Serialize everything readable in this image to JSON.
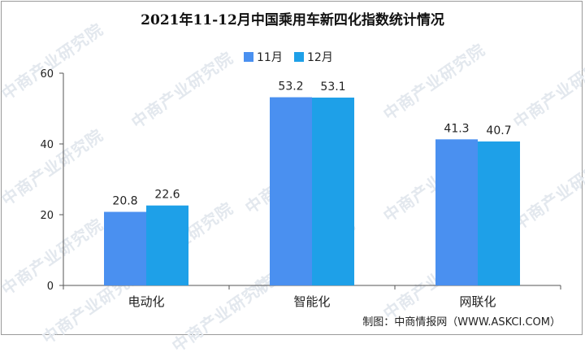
{
  "chart_data": {
    "type": "bar",
    "title": "2021年11-12月中国乘用车新四化指数统计情况",
    "categories": [
      "电动化",
      "智能化",
      "网联化"
    ],
    "series": [
      {
        "name": "11月",
        "values": [
          20.8,
          53.2,
          41.3
        ],
        "color": "#4a90f0"
      },
      {
        "name": "12月",
        "values": [
          22.6,
          53.1,
          40.7
        ],
        "color": "#1ea0e8"
      }
    ],
    "ylim": [
      0,
      60
    ],
    "yticks": [
      "0",
      "20",
      "40",
      "60"
    ],
    "data_labels": [
      [
        "20.8",
        "53.2",
        "41.3"
      ],
      [
        "22.6",
        "53.1",
        "40.7"
      ]
    ],
    "legend_position": "top-center",
    "grid": false
  },
  "credit": "制图：中商情报网（WWW.ASKCI.COM）",
  "watermark_text": "中商产业研究院"
}
